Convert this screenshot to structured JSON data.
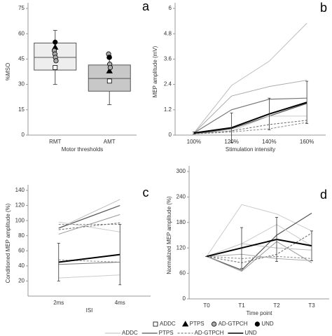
{
  "chart_data": [
    {
      "type": "box",
      "panel": "a",
      "ylabel": "%MSO",
      "xlabel": "Motor thresholds",
      "categories": [
        "RMT",
        "AMT"
      ],
      "ylim": [
        0,
        75
      ],
      "yticks": [
        0,
        15,
        30,
        45,
        60,
        75
      ],
      "boxes": [
        {
          "min": 30,
          "q1": 38.5,
          "median": 46,
          "q3": 54.5,
          "max": 62,
          "color": "#eeeeee"
        },
        {
          "min": 18,
          "q1": 26,
          "median": 33.5,
          "q3": 41.5,
          "max": 47,
          "color": "#c8c8c8"
        }
      ],
      "points": [
        [
          [
            40
          ],
          [
            32
          ]
        ],
        [
          [
            52
          ],
          [
            38
          ]
        ],
        [
          [
            50,
            48,
            46,
            44
          ],
          [
            48,
            46,
            42,
            40
          ]
        ],
        [
          [
            55
          ],
          [
            46
          ]
        ]
      ]
    },
    {
      "type": "line",
      "panel": "b",
      "ylabel": "MEP amplitude (mV)",
      "xlabel": "Stimulation intensity",
      "categories": [
        "100%",
        "120%",
        "140%",
        "160%"
      ],
      "ylim": [
        0,
        6
      ],
      "yticks": [
        0,
        1.2,
        2.4,
        3.6,
        4.8,
        6
      ],
      "series": [
        {
          "color": "#bdbdbd",
          "dash": "solid",
          "width": 1,
          "values": [
            0.1,
            2.35,
            3.5,
            5.3
          ]
        },
        {
          "color": "#aaaaaa",
          "dash": "solid",
          "width": 1,
          "values": [
            0.1,
            1.85,
            2.3,
            2.6
          ]
        },
        {
          "color": "#777777",
          "dash": "solid",
          "width": 1.2,
          "values": [
            0.1,
            1.2,
            1.7,
            1.75
          ]
        },
        {
          "color": "#555555",
          "dash": "solid",
          "width": 1.2,
          "values": [
            0.05,
            0.3,
            0.9,
            1.5
          ]
        },
        {
          "color": "#cccccc",
          "dash": "solid",
          "width": 1,
          "values": [
            0.05,
            0.2,
            0.9,
            0.9
          ]
        },
        {
          "color": "#666666",
          "dash": "dashed",
          "width": 1,
          "values": [
            0.05,
            0.2,
            0.5,
            0.7
          ]
        },
        {
          "color": "#888888",
          "dash": "dashed",
          "width": 1,
          "values": [
            0.05,
            0.15,
            0.3,
            0.6
          ]
        },
        {
          "color": "#000000",
          "dash": "solid",
          "width": 2,
          "values": [
            0.1,
            0.35,
            1.0,
            1.55
          ],
          "errors": [
            0.05,
            0.7,
            0.75,
            1.0
          ]
        }
      ]
    },
    {
      "type": "line",
      "panel": "c",
      "ylabel": "Conditioned MEP amplitude (%)",
      "xlabel": "ISI",
      "categories": [
        "2ms",
        "4ms"
      ],
      "ylim": [
        0,
        140
      ],
      "yticks": [
        20,
        40,
        60,
        80,
        100,
        120,
        140
      ],
      "series": [
        {
          "color": "#bdbdbd",
          "dash": "solid",
          "width": 1,
          "values": [
            90,
            128
          ]
        },
        {
          "color": "#555555",
          "dash": "solid",
          "width": 1.2,
          "values": [
            90,
            120
          ]
        },
        {
          "color": "#cccccc",
          "dash": "solid",
          "width": 1,
          "values": [
            98,
            85
          ]
        },
        {
          "color": "#888888",
          "dash": "dashed",
          "width": 1,
          "values": [
            95,
            95
          ]
        },
        {
          "color": "#666666",
          "dash": "dashed",
          "width": 1,
          "values": [
            88,
            97
          ]
        },
        {
          "color": "#999999",
          "dash": "solid",
          "width": 1,
          "values": [
            82,
            108
          ]
        },
        {
          "color": "#777777",
          "dash": "solid",
          "width": 1,
          "values": [
            42,
            45
          ]
        },
        {
          "color": "#888888",
          "dash": "dashed",
          "width": 1,
          "values": [
            48,
            45
          ]
        },
        {
          "color": "#cccccc",
          "dash": "solid",
          "width": 1,
          "values": [
            24,
            28
          ]
        },
        {
          "color": "#000000",
          "dash": "solid",
          "width": 2,
          "values": [
            45,
            55
          ],
          "errors": [
            25,
            40
          ]
        }
      ]
    },
    {
      "type": "line",
      "panel": "d",
      "ylabel": "Normalized MEP amplitude (%)",
      "xlabel": "Time point",
      "categories": [
        "T0",
        "T1",
        "T2",
        "T3"
      ],
      "ylim": [
        0,
        300
      ],
      "yticks": [
        0,
        60,
        120,
        180,
        240,
        300
      ],
      "series": [
        {
          "color": "#cccccc",
          "dash": "solid",
          "width": 1,
          "values": [
            100,
            222,
            200,
            160
          ]
        },
        {
          "color": "#555555",
          "dash": "solid",
          "width": 1.2,
          "values": [
            100,
            68,
            150,
            202
          ]
        },
        {
          "color": "#999999",
          "dash": "solid",
          "width": 1,
          "values": [
            100,
            65,
            135,
            85
          ]
        },
        {
          "color": "#bdbdbd",
          "dash": "solid",
          "width": 1,
          "values": [
            100,
            130,
            120,
            115
          ]
        },
        {
          "color": "#888888",
          "dash": "dashed",
          "width": 1,
          "values": [
            100,
            95,
            100,
            95
          ]
        },
        {
          "color": "#666666",
          "dash": "dashed",
          "width": 1,
          "values": [
            100,
            85,
            105,
            155
          ]
        },
        {
          "color": "#aaaaaa",
          "dash": "solid",
          "width": 1,
          "values": [
            100,
            105,
            95,
            90
          ]
        },
        {
          "color": "#cccccc",
          "dash": "solid",
          "width": 1,
          "values": [
            100,
            130,
            175,
            125
          ]
        },
        {
          "color": "#000000",
          "dash": "solid",
          "width": 2,
          "values": [
            100,
            120,
            140,
            125
          ],
          "errors": [
            0,
            48,
            52,
            35
          ]
        }
      ]
    }
  ],
  "legend_markers": [
    {
      "name": "ADDC",
      "marker": "square",
      "color": "#ffffff"
    },
    {
      "name": "PTPS",
      "marker": "triangle",
      "color": "#000000"
    },
    {
      "name": "AD-GTPCH",
      "marker": "circle",
      "color": "#aaaaaa"
    },
    {
      "name": "UND",
      "marker": "circle",
      "color": "#000000"
    }
  ],
  "legend_lines": [
    {
      "name": "ADDC",
      "color": "#bbbbbb",
      "dash": "solid",
      "width": 1
    },
    {
      "name": "PTPS",
      "color": "#555555",
      "dash": "solid",
      "width": 1.2
    },
    {
      "name": "AD-GTPCH",
      "color": "#666666",
      "dash": "dashed",
      "width": 1
    },
    {
      "name": "UND",
      "color": "#000000",
      "dash": "solid",
      "width": 1.6
    }
  ]
}
